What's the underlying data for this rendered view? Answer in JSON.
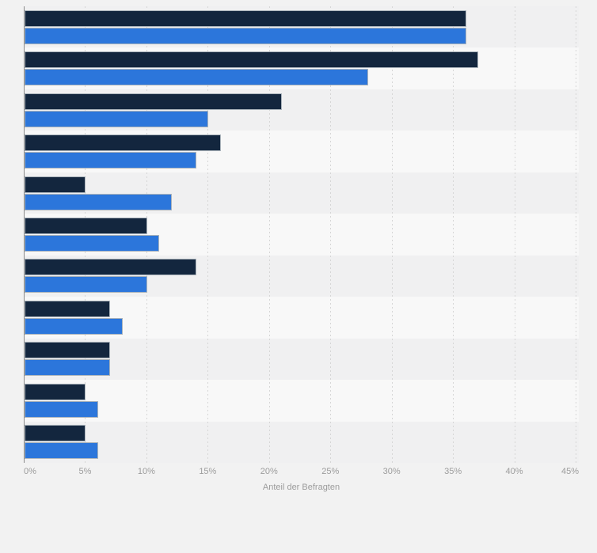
{
  "chart_data": {
    "type": "bar",
    "orientation": "horizontal",
    "xlabel": "Anteil der Befragten",
    "xlim": [
      0,
      45
    ],
    "x_tick_labels": [
      "0%",
      "5%",
      "10%",
      "15%",
      "20%",
      "25%",
      "30%",
      "35%",
      "40%",
      "45%"
    ],
    "grid": true,
    "legend_visible": false,
    "category_labels_visible": false,
    "group_count": 11,
    "series": [
      {
        "name": "series-dark-navy",
        "color": "#13263E",
        "values": [
          36,
          37,
          21,
          16,
          5,
          10,
          14,
          7,
          7,
          5,
          5
        ]
      },
      {
        "name": "series-blue",
        "color": "#2C76DB",
        "values": [
          36,
          28,
          15,
          14,
          12,
          11,
          10,
          8,
          7,
          6,
          6
        ]
      }
    ]
  },
  "colors": {
    "page_background": "#f2f2f2",
    "row_stripe_dark": "#f0f0f1",
    "row_stripe_light": "#f8f8f8",
    "gridline": "#d6d6d6",
    "axis_line": "#8a8a8a",
    "tick_label_text": "#9c9c9c",
    "axis_title_text": "#9c9c9c",
    "bar_border": "#aab3bb"
  }
}
